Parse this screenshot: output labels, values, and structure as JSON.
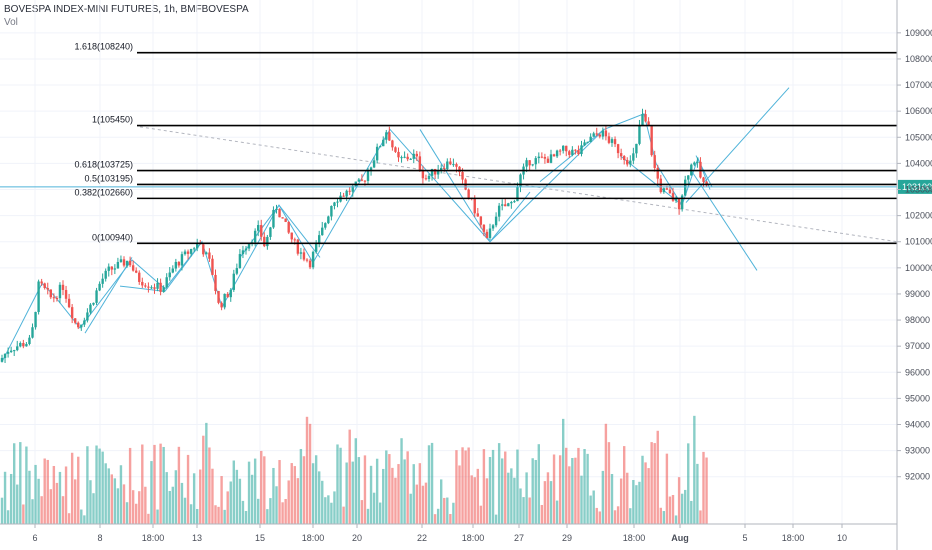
{
  "header": {
    "title": "BOVESPA INDEX-MINI FUTURES, 1h, BMFBOVESPA",
    "volume_label": "Vol"
  },
  "price_badge": "103100",
  "chart_data": {
    "type": "candlestick",
    "y_ticks": [
      "109000",
      "108000",
      "107000",
      "106000",
      "105000",
      "104000",
      "103000",
      "102000",
      "101000",
      "100000",
      "99000",
      "98000",
      "97000",
      "96000",
      "95000",
      "94000",
      "93000",
      "92000"
    ],
    "x_ticks": [
      "6",
      "8",
      "18:00",
      "13",
      "15",
      "18:00",
      "20",
      "22",
      "18:00",
      "27",
      "29",
      "18:00",
      "Aug",
      "5",
      "18:00",
      "10"
    ],
    "ylim": [
      91300,
      109300
    ],
    "current_price": 103100,
    "fib_levels": [
      {
        "label": "1.618(108240)",
        "value": 108240
      },
      {
        "label": "1(105450)",
        "value": 105450
      },
      {
        "label": "0.618(103725)",
        "value": 103725
      },
      {
        "label": "0.5(103195)",
        "value": 103195
      },
      {
        "label": "0.382(102660)",
        "value": 102660
      },
      {
        "label": "0(100940)",
        "value": 100940
      }
    ],
    "up_color": "#26a69a",
    "down_color": "#ef5350",
    "line_color": "#4fb3d9",
    "fib_color": "#000000",
    "key_points": [
      {
        "x": "6",
        "y": 96400
      },
      {
        "x": "6",
        "y": 99400
      },
      {
        "x": "8",
        "y": 97700
      },
      {
        "x": "8",
        "y": 100300
      },
      {
        "x": "18:00",
        "y": 99200
      },
      {
        "x": "13",
        "y": 101000
      },
      {
        "x": "13",
        "y": 98500
      },
      {
        "x": "15",
        "y": 102400
      },
      {
        "x": "18:00",
        "y": 100200
      },
      {
        "x": "20",
        "y": 103300
      },
      {
        "x": "20",
        "y": 105300
      },
      {
        "x": "22",
        "y": 101000
      },
      {
        "x": "27",
        "y": 102800
      },
      {
        "x": "29",
        "y": 105200
      },
      {
        "x": "18:00",
        "y": 104000
      },
      {
        "x": "18:00",
        "y": 105900
      },
      {
        "x": "Aug",
        "y": 102400
      },
      {
        "x": "Aug",
        "y": 104200
      },
      {
        "x": "Aug",
        "y": 103000
      }
    ]
  }
}
